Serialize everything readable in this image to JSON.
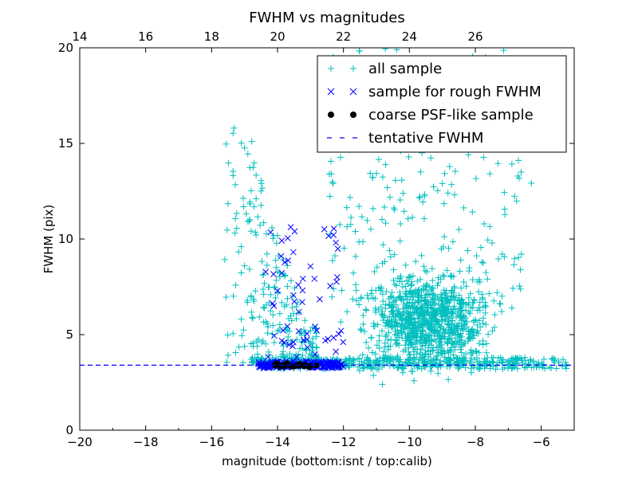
{
  "chart_data": {
    "type": "scatter",
    "title": "FWHM vs magnitudes",
    "xlabel": "magnitude (bottom:isnt / top:calib)",
    "ylabel": "FWHM (pix)",
    "xlim": [
      -20,
      -5
    ],
    "ylim": [
      0,
      20
    ],
    "xticks": [
      -20,
      -18,
      -16,
      -14,
      -12,
      -10,
      -8,
      -6
    ],
    "yticks": [
      0,
      5,
      10,
      15,
      20
    ],
    "x_top_ticks": [
      14,
      16,
      18,
      20,
      22,
      24,
      26
    ],
    "x_top_offset": 34.0,
    "grid": false,
    "legend_position": "upper-right",
    "tentative_fwhm": 3.4,
    "series": [
      {
        "name": "all sample",
        "marker": "plus",
        "color": "#00bfbf",
        "points": []
      },
      {
        "name": "sample for rough FWHM",
        "marker": "x",
        "color": "#0000ff",
        "points": []
      },
      {
        "name": "coarse PSF-like sample",
        "marker": "circle",
        "color": "#000000",
        "points": []
      },
      {
        "name": "tentative FWHM",
        "marker": "dashed-line",
        "color": "#0000ff",
        "points": []
      }
    ]
  }
}
